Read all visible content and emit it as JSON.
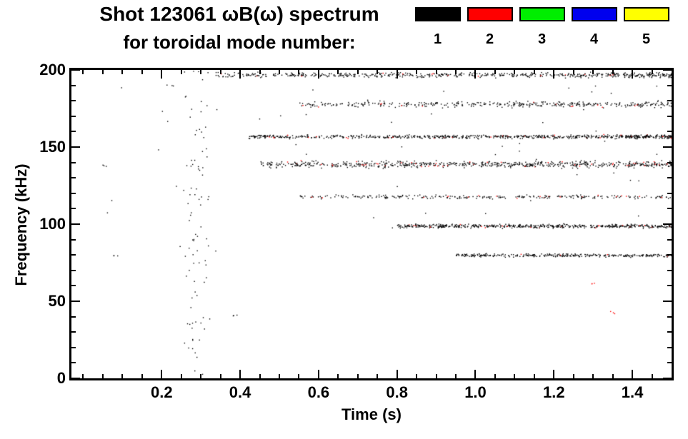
{
  "header": {
    "title_line1": "Shot 123061 ωB(ω) spectrum",
    "title_line2": "for toroidal mode number:"
  },
  "legend": [
    {
      "label": "1",
      "color": "#000000"
    },
    {
      "label": "2",
      "color": "#ff0000"
    },
    {
      "label": "3",
      "color": "#00ee00"
    },
    {
      "label": "4",
      "color": "#0000ee"
    },
    {
      "label": "5",
      "color": "#ffff00"
    }
  ],
  "chart_data": {
    "type": "scatter",
    "title": "Shot 123061 ωB(ω) spectrum for toroidal mode number",
    "xlabel": "Time (s)",
    "ylabel": "Frequency (kHz)",
    "xlim": [
      -0.03,
      1.5
    ],
    "ylim": [
      0,
      200
    ],
    "xticks": [
      0.2,
      0.4,
      0.6,
      0.8,
      1.0,
      1.2,
      1.4
    ],
    "yticks": [
      0,
      50,
      100,
      150,
      200
    ],
    "x_minor_step": 0.05,
    "y_minor_step": 10,
    "grid": false,
    "legend_position": "top-right",
    "series_note": "Spectrogram speckle: horizontal coherent-mode frequency bands; point color encodes toroidal mode number (mostly n=1 black with occasional n=2 red)",
    "bands": [
      {
        "freq": 197,
        "t_start": 0.33,
        "t_end": 1.5,
        "n": 560,
        "spread": 1.8,
        "red_fraction": 0.02,
        "bias": 1.3
      },
      {
        "freq": 178,
        "t_start": 0.55,
        "t_end": 1.5,
        "n": 380,
        "spread": 2.3,
        "red_fraction": 0.03,
        "bias": 1.1
      },
      {
        "freq": 157,
        "t_start": 0.42,
        "t_end": 1.5,
        "n": 700,
        "spread": 1.4,
        "red_fraction": 0.05,
        "bias": 1.2
      },
      {
        "freq": 139,
        "t_start": 0.45,
        "t_end": 1.5,
        "n": 650,
        "spread": 2.4,
        "red_fraction": 0.08,
        "bias": 1.1
      },
      {
        "freq": 118,
        "t_start": 0.55,
        "t_end": 1.5,
        "n": 260,
        "spread": 1.4,
        "red_fraction": 0.05,
        "bias": 1.0
      },
      {
        "freq": 99,
        "t_start": 0.8,
        "t_end": 1.5,
        "n": 520,
        "spread": 1.4,
        "red_fraction": 0.05,
        "bias": 1.0
      },
      {
        "freq": 80,
        "t_start": 0.95,
        "t_end": 1.5,
        "n": 300,
        "spread": 1.2,
        "red_fraction": 0.02,
        "bias": 1.0
      }
    ],
    "burst": {
      "t_center": 0.29,
      "t_spread": 0.02,
      "f_min": 2,
      "f_max": 200,
      "n": 90
    },
    "background_points": {
      "n": 55,
      "f_min": 95,
      "f_max": 200
    },
    "extra_points": [
      {
        "t": 0.05,
        "f": 138,
        "mode": 1
      },
      {
        "t": 0.08,
        "f": 80,
        "mode": 1
      },
      {
        "t": 0.22,
        "f": 190,
        "mode": 1
      },
      {
        "t": 0.38,
        "f": 41,
        "mode": 1
      },
      {
        "t": 1.3,
        "f": 62,
        "mode": 2
      },
      {
        "t": 1.35,
        "f": 43,
        "mode": 2
      }
    ]
  }
}
